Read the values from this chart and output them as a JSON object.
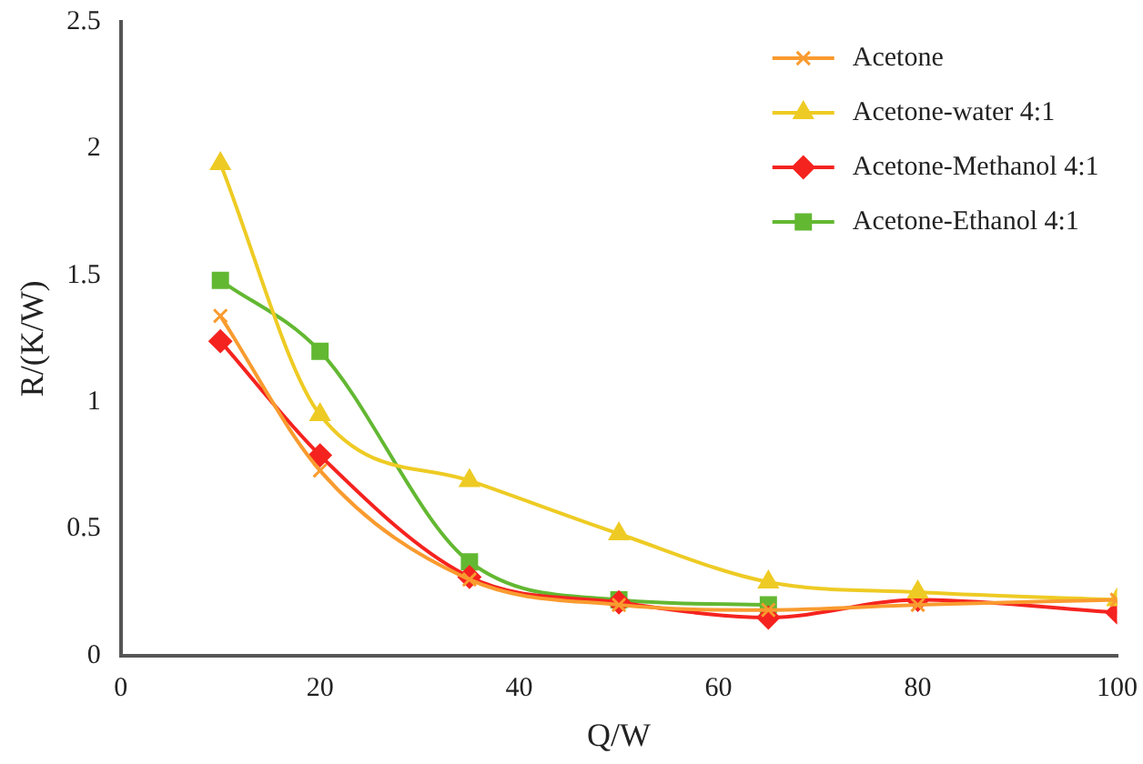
{
  "chart_data": {
    "type": "line",
    "xlabel": "Q/W",
    "ylabel": "R/(K/W)",
    "x": [
      10,
      20,
      35,
      50,
      65,
      80,
      100
    ],
    "series": [
      {
        "name": "Acetone",
        "color": "#f99b2f",
        "marker": "cross",
        "values": [
          1.34,
          0.73,
          0.3,
          0.2,
          0.18,
          0.2,
          0.22
        ]
      },
      {
        "name": "Acetone-water 4:1",
        "color": "#eecb24",
        "marker": "triangle",
        "values": [
          1.94,
          0.95,
          0.69,
          0.48,
          0.29,
          0.25,
          0.22
        ]
      },
      {
        "name": "Acetone-Methanol 4:1",
        "color": "#f5231f",
        "marker": "diamond",
        "values": [
          1.24,
          0.79,
          0.31,
          0.21,
          0.15,
          0.22,
          0.17
        ]
      },
      {
        "name": "Acetone-Ethanol 4:1",
        "color": "#63b832",
        "marker": "square",
        "values": [
          1.48,
          1.2,
          0.37,
          0.22,
          0.2,
          null,
          null
        ]
      }
    ],
    "xlim": [
      0,
      100
    ],
    "xticks": [
      0,
      20,
      40,
      60,
      80,
      100
    ],
    "ylim": [
      0,
      2.5
    ],
    "yticks": [
      0,
      0.5,
      1,
      1.5,
      2,
      2.5
    ],
    "grid": false,
    "legend": "top right"
  }
}
